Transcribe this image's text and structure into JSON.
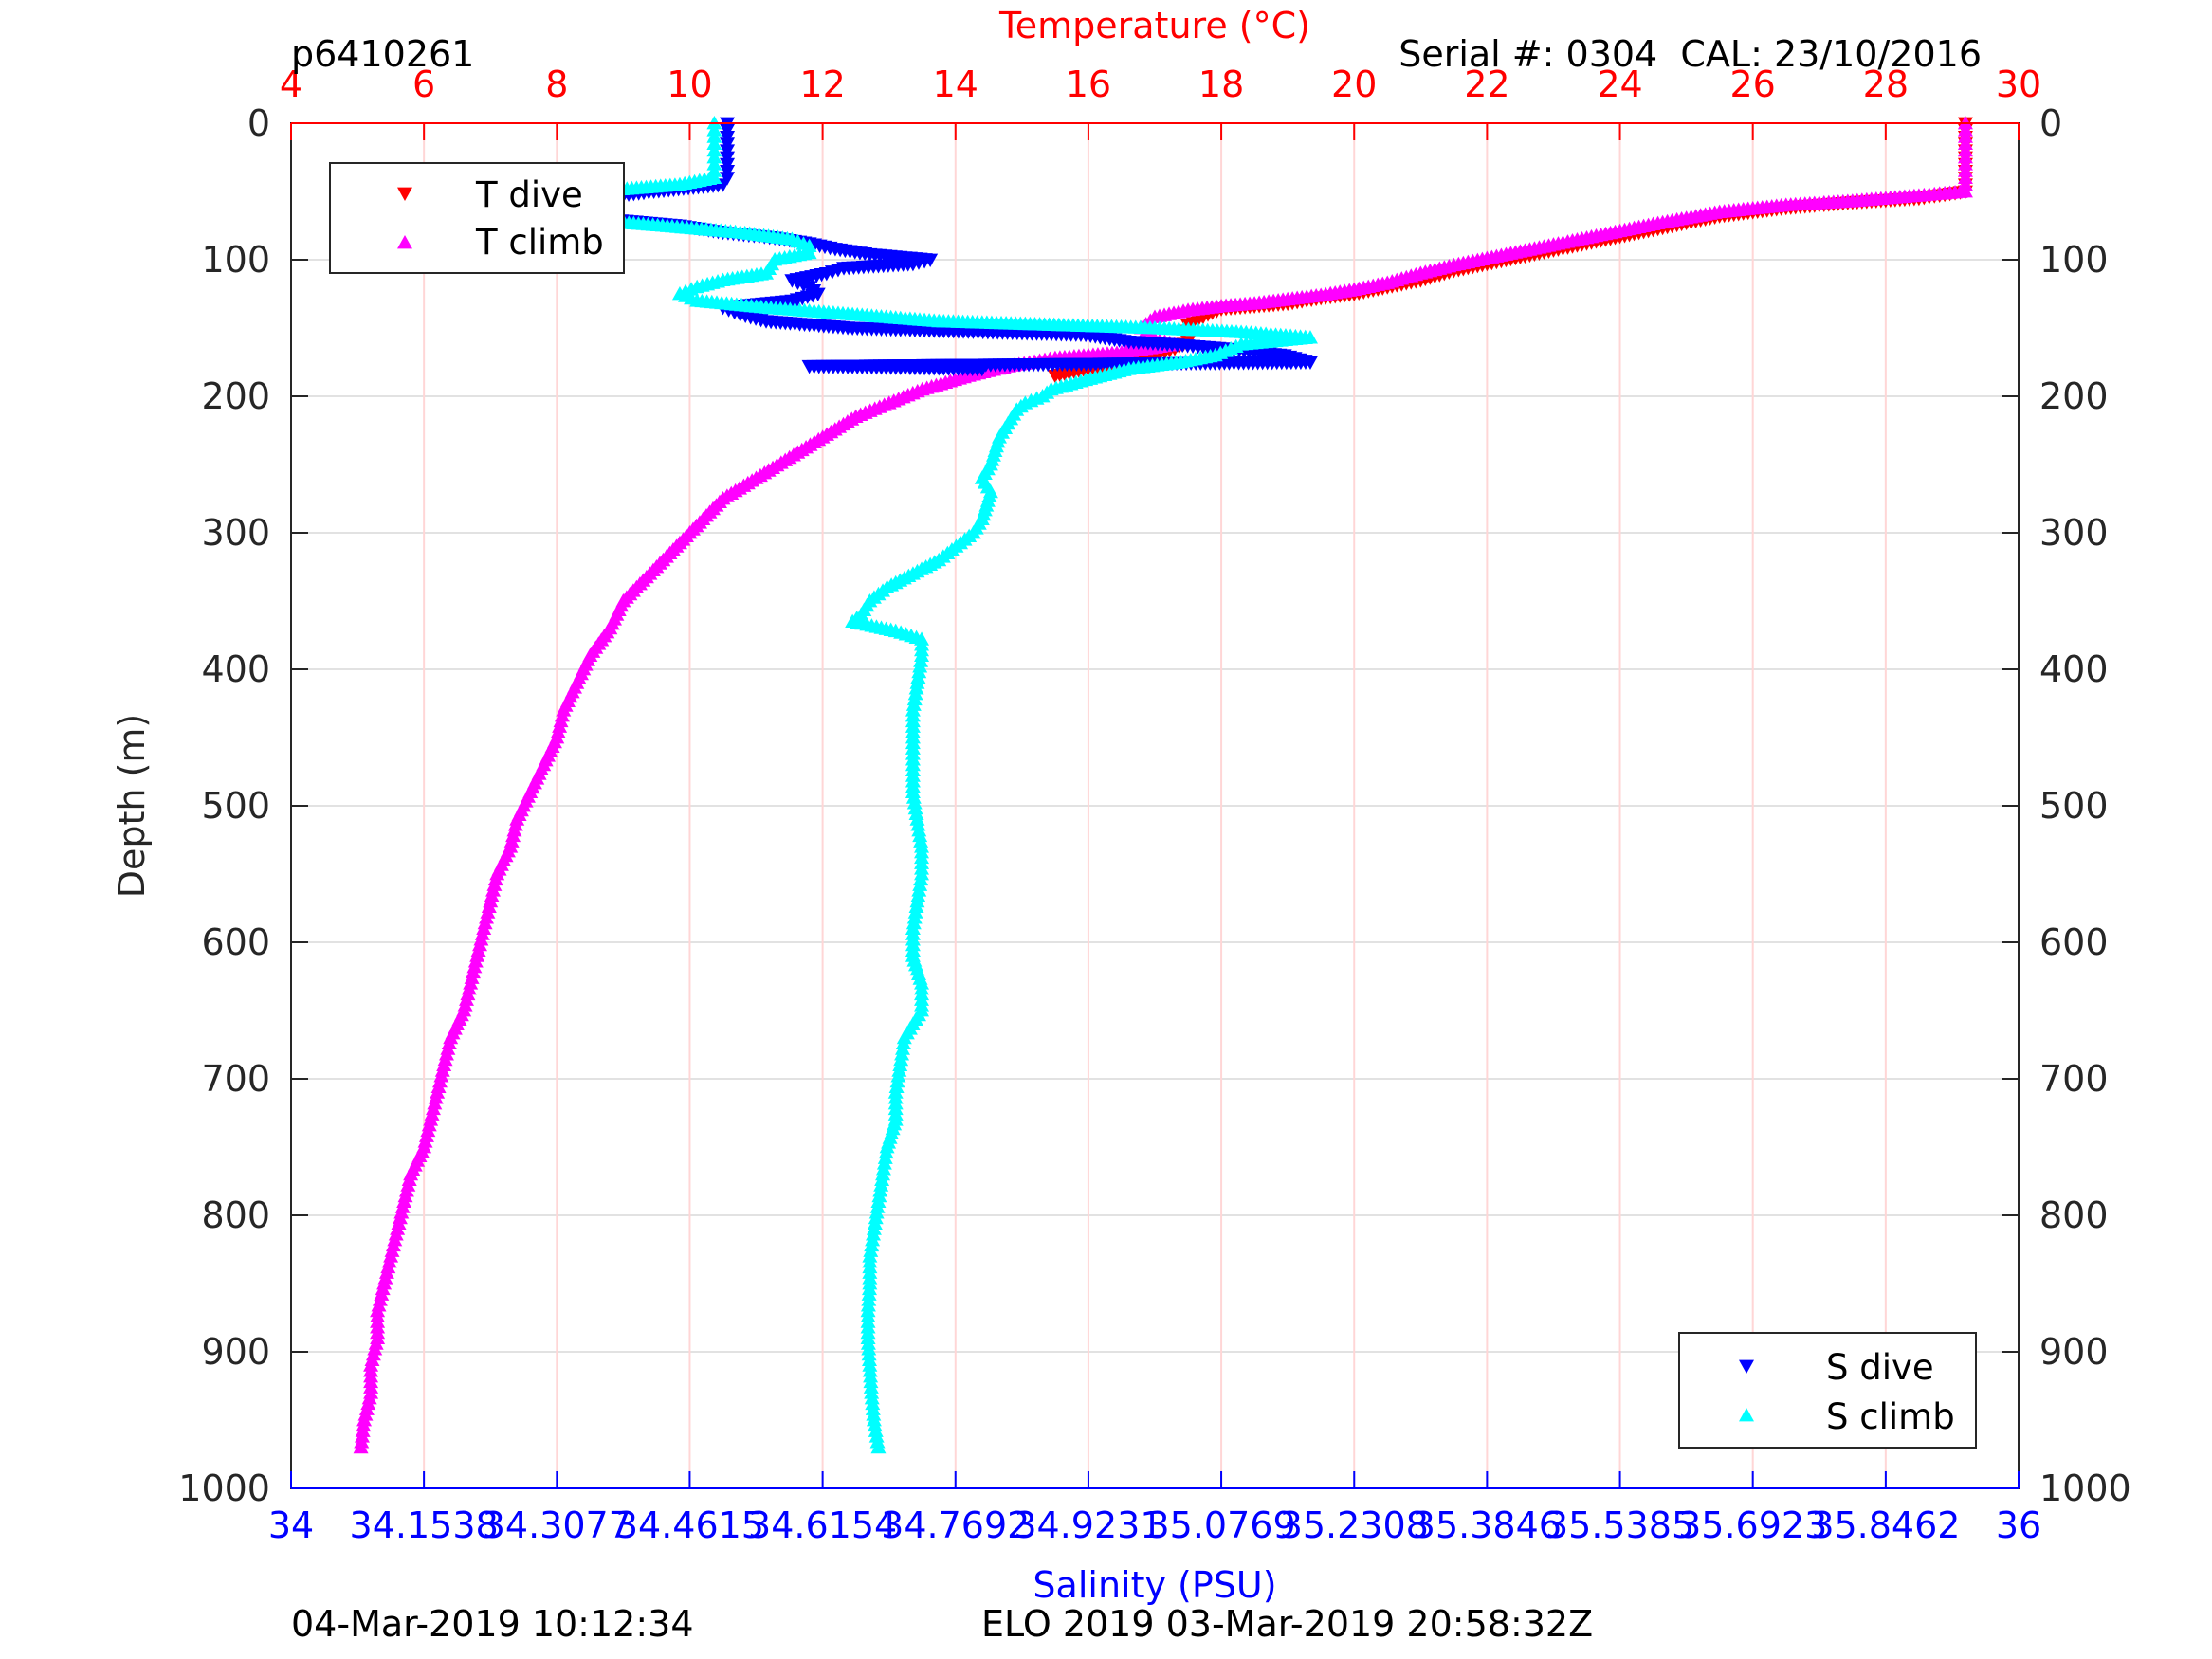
{
  "header": {
    "profile_id": "p6410261",
    "serial": "Serial #: 0304  CAL: 23/10/2016"
  },
  "footer": {
    "left_timestamp": "04-Mar-2019 10:12:34",
    "right_text": "ELO 2019 03-Mar-2019 20:58:32Z"
  },
  "colors": {
    "t_dive": "#ff0000",
    "t_climb": "#ff00ff",
    "s_dive": "#0000ff",
    "s_climb": "#00ffff",
    "temp_axis": "#ff0000",
    "sal_axis": "#0000ff"
  },
  "legend_top_left": {
    "items": [
      {
        "label": "T dive",
        "marker": "triangle-down",
        "color": "#ff0000"
      },
      {
        "label": "T climb",
        "marker": "triangle-up",
        "color": "#ff00ff"
      }
    ]
  },
  "legend_bottom_right": {
    "items": [
      {
        "label": "S dive",
        "marker": "triangle-down",
        "color": "#0000ff"
      },
      {
        "label": "S climb",
        "marker": "triangle-up",
        "color": "#00ffff"
      }
    ]
  },
  "chart_data": {
    "type": "scatter",
    "title": "",
    "top_axis": {
      "label": "Temperature (°C)",
      "range": [
        4,
        30
      ],
      "ticks": [
        "4",
        "6",
        "8",
        "10",
        "12",
        "14",
        "16",
        "18",
        "20",
        "22",
        "24",
        "26",
        "28",
        "30"
      ]
    },
    "bottom_axis": {
      "label": "Salinity (PSU)",
      "range": [
        34,
        36
      ],
      "ticks": [
        "34",
        "34.1538",
        "34.3077",
        "34.4615",
        "34.6154",
        "34.7692",
        "34.9231",
        "35.0769",
        "35.2308",
        "35.3846",
        "35.5385",
        "35.6923",
        "35.8462",
        "36"
      ]
    },
    "y_axis": {
      "label": "Depth (m)",
      "range": [
        0,
        1000
      ],
      "reversed": true,
      "ticks": [
        "0",
        "100",
        "200",
        "300",
        "400",
        "500",
        "600",
        "700",
        "800",
        "900",
        "1000"
      ]
    },
    "grid": true,
    "legend_positions": [
      "top-left",
      "bottom-right"
    ],
    "series": [
      {
        "name": "T dive",
        "axis": "temperature",
        "marker": "triangle-down",
        "points": [
          [
            29.2,
            0
          ],
          [
            29.2,
            10
          ],
          [
            29.2,
            20
          ],
          [
            29.2,
            30
          ],
          [
            29.2,
            40
          ],
          [
            29.2,
            50
          ],
          [
            28.5,
            55
          ],
          [
            27.5,
            58
          ],
          [
            26.5,
            62
          ],
          [
            25.5,
            68
          ],
          [
            24.5,
            78
          ],
          [
            23.5,
            88
          ],
          [
            22.5,
            98
          ],
          [
            21.5,
            108
          ],
          [
            21,
            115
          ],
          [
            20.5,
            120
          ],
          [
            20,
            125
          ],
          [
            19.5,
            128
          ],
          [
            19,
            132
          ],
          [
            18.5,
            134
          ],
          [
            18,
            136
          ],
          [
            17.8,
            140
          ],
          [
            17.5,
            148
          ],
          [
            17.5,
            160
          ],
          [
            17.3,
            165
          ],
          [
            17,
            170
          ],
          [
            16.5,
            175
          ],
          [
            16,
            180
          ],
          [
            15.5,
            185
          ]
        ]
      },
      {
        "name": "T climb",
        "axis": "temperature",
        "marker": "triangle-up",
        "points": [
          [
            29.2,
            0
          ],
          [
            29.2,
            10
          ],
          [
            29.2,
            20
          ],
          [
            29.2,
            30
          ],
          [
            29.2,
            40
          ],
          [
            29.2,
            50
          ],
          [
            28.5,
            53
          ],
          [
            27.5,
            57
          ],
          [
            26.5,
            60
          ],
          [
            25.5,
            65
          ],
          [
            24.5,
            74
          ],
          [
            23.5,
            84
          ],
          [
            22.5,
            94
          ],
          [
            21.5,
            104
          ],
          [
            21,
            110
          ],
          [
            20.5,
            117
          ],
          [
            20,
            122
          ],
          [
            19.5,
            126
          ],
          [
            19,
            129
          ],
          [
            18.5,
            132
          ],
          [
            18,
            134
          ],
          [
            17.5,
            137
          ],
          [
            17,
            142
          ],
          [
            16.8,
            150
          ],
          [
            17,
            158
          ],
          [
            17.3,
            162
          ],
          [
            16.5,
            168
          ],
          [
            15.5,
            172
          ],
          [
            14.8,
            178
          ],
          [
            14.2,
            185
          ],
          [
            13.5,
            195
          ],
          [
            13,
            205
          ],
          [
            12.5,
            215
          ],
          [
            12,
            230
          ],
          [
            11.5,
            245
          ],
          [
            11,
            260
          ],
          [
            10.5,
            275
          ],
          [
            10.2,
            290
          ],
          [
            9.8,
            310
          ],
          [
            9.4,
            330
          ],
          [
            9,
            350
          ],
          [
            8.8,
            370
          ],
          [
            8.5,
            390
          ],
          [
            8.3,
            410
          ],
          [
            8.1,
            430
          ],
          [
            8,
            450
          ],
          [
            7.8,
            470
          ],
          [
            7.6,
            490
          ],
          [
            7.4,
            510
          ],
          [
            7.3,
            530
          ],
          [
            7.1,
            550
          ],
          [
            7,
            570
          ],
          [
            6.9,
            590
          ],
          [
            6.8,
            610
          ],
          [
            6.7,
            630
          ],
          [
            6.6,
            650
          ],
          [
            6.4,
            670
          ],
          [
            6.3,
            690
          ],
          [
            6.2,
            710
          ],
          [
            6.1,
            730
          ],
          [
            6,
            750
          ],
          [
            5.8,
            770
          ],
          [
            5.7,
            790
          ],
          [
            5.6,
            810
          ],
          [
            5.5,
            830
          ],
          [
            5.4,
            850
          ],
          [
            5.3,
            870
          ],
          [
            5.3,
            890
          ],
          [
            5.2,
            910
          ],
          [
            5.2,
            930
          ],
          [
            5.1,
            950
          ],
          [
            5.05,
            970
          ]
        ]
      },
      {
        "name": "S dive",
        "axis": "salinity",
        "marker": "triangle-down",
        "points": [
          [
            34.505,
            0
          ],
          [
            34.505,
            10
          ],
          [
            34.505,
            20
          ],
          [
            34.505,
            30
          ],
          [
            34.505,
            40
          ],
          [
            34.5,
            45
          ],
          [
            34.42,
            50
          ],
          [
            34.35,
            55
          ],
          [
            34.3,
            60
          ],
          [
            34.31,
            65
          ],
          [
            34.36,
            70
          ],
          [
            34.45,
            75
          ],
          [
            34.5,
            80
          ],
          [
            34.56,
            84
          ],
          [
            34.6,
            88
          ],
          [
            34.63,
            92
          ],
          [
            34.67,
            96
          ],
          [
            34.74,
            100
          ],
          [
            34.72,
            103
          ],
          [
            34.64,
            106
          ],
          [
            34.62,
            110
          ],
          [
            34.58,
            115
          ],
          [
            34.6,
            120
          ],
          [
            34.61,
            125
          ],
          [
            34.58,
            130
          ],
          [
            34.5,
            135
          ],
          [
            34.52,
            140
          ],
          [
            34.55,
            145
          ],
          [
            34.65,
            150
          ],
          [
            34.75,
            152
          ],
          [
            34.92,
            155
          ],
          [
            34.97,
            160
          ],
          [
            35.02,
            162
          ],
          [
            35.08,
            165
          ],
          [
            35.15,
            170
          ],
          [
            35.18,
            175
          ],
          [
            34.6,
            178
          ],
          [
            34.8,
            180
          ]
        ]
      },
      {
        "name": "S climb",
        "axis": "salinity",
        "marker": "triangle-up",
        "points": [
          [
            34.49,
            0
          ],
          [
            34.49,
            10
          ],
          [
            34.49,
            20
          ],
          [
            34.49,
            30
          ],
          [
            34.49,
            40
          ],
          [
            34.45,
            45
          ],
          [
            34.35,
            50
          ],
          [
            34.3,
            55
          ],
          [
            34.28,
            60
          ],
          [
            34.3,
            65
          ],
          [
            34.33,
            70
          ],
          [
            34.43,
            75
          ],
          [
            34.52,
            80
          ],
          [
            34.58,
            85
          ],
          [
            34.6,
            90
          ],
          [
            34.6,
            95
          ],
          [
            34.56,
            100
          ],
          [
            34.55,
            110
          ],
          [
            34.5,
            115
          ],
          [
            34.47,
            120
          ],
          [
            34.45,
            125
          ],
          [
            34.47,
            130
          ],
          [
            34.55,
            135
          ],
          [
            34.65,
            140
          ],
          [
            34.75,
            145
          ],
          [
            34.9,
            148
          ],
          [
            35.0,
            150
          ],
          [
            35.1,
            153
          ],
          [
            35.18,
            157
          ],
          [
            35.1,
            162
          ],
          [
            35.07,
            170
          ],
          [
            35.03,
            175
          ],
          [
            34.97,
            180
          ],
          [
            34.92,
            188
          ],
          [
            34.88,
            195
          ],
          [
            34.87,
            200
          ],
          [
            34.85,
            205
          ],
          [
            34.84,
            210
          ],
          [
            34.83,
            220
          ],
          [
            34.82,
            230
          ],
          [
            34.815,
            240
          ],
          [
            34.81,
            250
          ],
          [
            34.8,
            260
          ],
          [
            34.81,
            270
          ],
          [
            34.805,
            280
          ],
          [
            34.8,
            290
          ],
          [
            34.79,
            300
          ],
          [
            34.77,
            310
          ],
          [
            34.75,
            320
          ],
          [
            34.72,
            330
          ],
          [
            34.69,
            340
          ],
          [
            34.67,
            350
          ],
          [
            34.66,
            360
          ],
          [
            34.65,
            365
          ],
          [
            34.7,
            372
          ],
          [
            34.73,
            378
          ],
          [
            34.73,
            390
          ],
          [
            34.725,
            410
          ],
          [
            34.72,
            430
          ],
          [
            34.72,
            450
          ],
          [
            34.72,
            470
          ],
          [
            34.72,
            490
          ],
          [
            34.725,
            510
          ],
          [
            34.73,
            530
          ],
          [
            34.73,
            550
          ],
          [
            34.725,
            570
          ],
          [
            34.72,
            590
          ],
          [
            34.72,
            610
          ],
          [
            34.725,
            620
          ],
          [
            34.73,
            630
          ],
          [
            34.73,
            650
          ],
          [
            34.72,
            660
          ],
          [
            34.71,
            670
          ],
          [
            34.705,
            690
          ],
          [
            34.7,
            710
          ],
          [
            34.7,
            730
          ],
          [
            34.69,
            750
          ],
          [
            34.685,
            770
          ],
          [
            34.68,
            790
          ],
          [
            34.675,
            810
          ],
          [
            34.67,
            830
          ],
          [
            34.67,
            850
          ],
          [
            34.668,
            870
          ],
          [
            34.668,
            890
          ],
          [
            34.67,
            910
          ],
          [
            34.672,
            930
          ],
          [
            34.675,
            950
          ],
          [
            34.68,
            970
          ]
        ]
      }
    ]
  }
}
